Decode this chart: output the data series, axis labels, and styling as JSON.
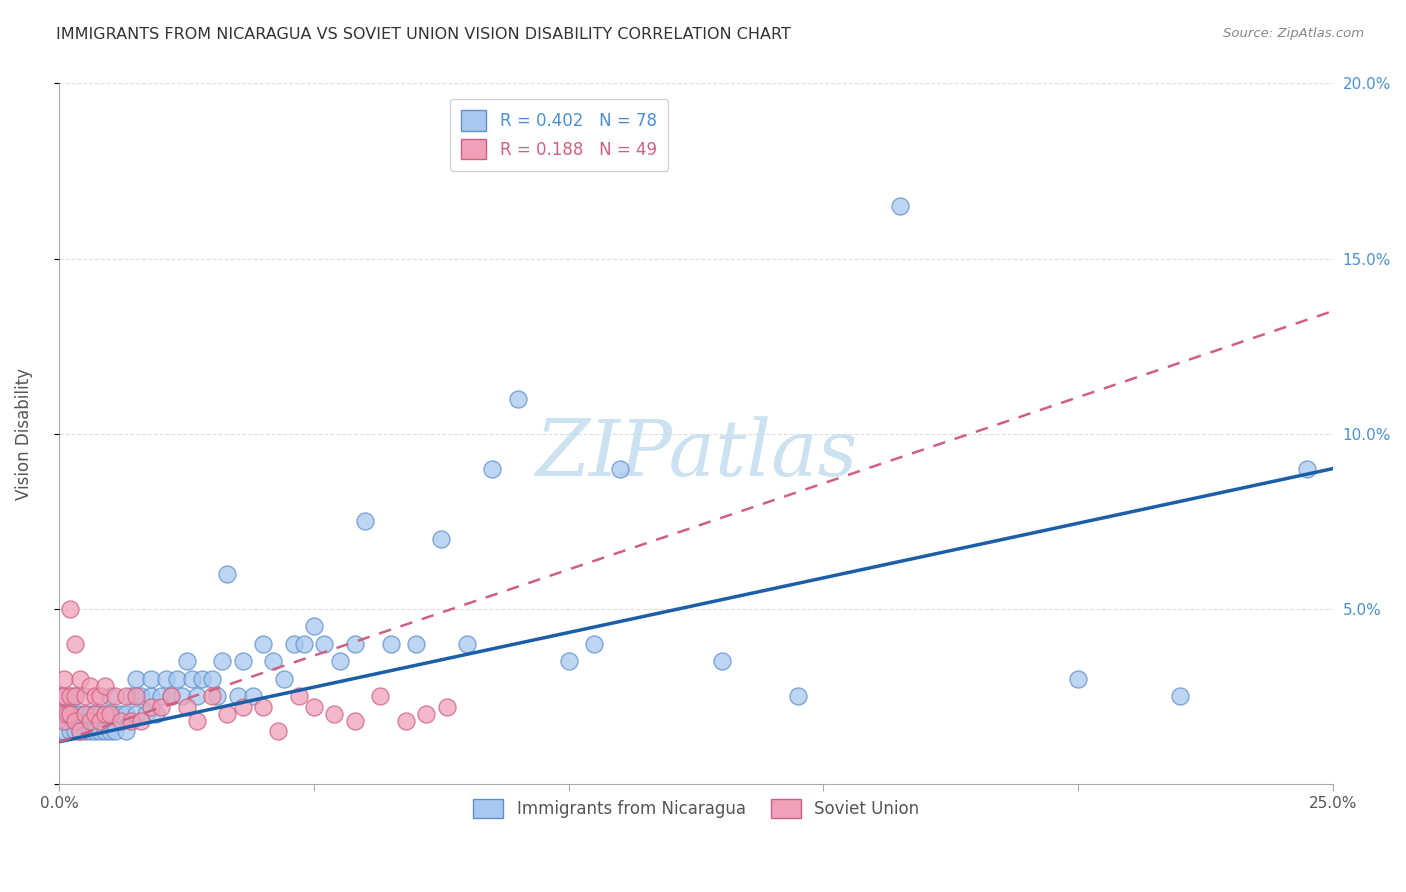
{
  "title": "IMMIGRANTS FROM NICARAGUA VS SOVIET UNION VISION DISABILITY CORRELATION CHART",
  "source": "Source: ZipAtlas.com",
  "ylabel": "Vision Disability",
  "xlim": [
    0,
    0.25
  ],
  "ylim": [
    0,
    0.2
  ],
  "xticks": [
    0.0,
    0.05,
    0.1,
    0.15,
    0.2,
    0.25
  ],
  "yticks": [
    0.0,
    0.05,
    0.1,
    0.15,
    0.2
  ],
  "xtick_labels": [
    "0.0%",
    "",
    "",
    "",
    "",
    "25.0%"
  ],
  "ytick_labels_right": [
    "",
    "5.0%",
    "10.0%",
    "15.0%",
    "20.0%"
  ],
  "nicaragua_color": "#a8c8f0",
  "soviet_color": "#f0a0b8",
  "nicaragua_edge": "#6090c8",
  "soviet_edge": "#d06080",
  "trend_nicaragua_color": "#1a5fa8",
  "trend_soviet_color": "#d06080",
  "legend_R_nicaragua": "0.402",
  "legend_N_nicaragua": "78",
  "legend_R_soviet": "0.188",
  "legend_N_soviet": "49",
  "legend_color_nicaragua": "#4a90d9",
  "legend_color_soviet": "#d06080",
  "watermark_text": "ZIPatlas",
  "watermark_color": "#c8dff0",
  "nicaragua_x": [
    0.0005,
    0.001,
    0.001,
    0.0015,
    0.002,
    0.002,
    0.002,
    0.003,
    0.003,
    0.003,
    0.004,
    0.004,
    0.005,
    0.005,
    0.006,
    0.006,
    0.007,
    0.007,
    0.008,
    0.008,
    0.009,
    0.009,
    0.01,
    0.01,
    0.011,
    0.011,
    0.012,
    0.013,
    0.013,
    0.014,
    0.015,
    0.015,
    0.016,
    0.017,
    0.018,
    0.018,
    0.019,
    0.02,
    0.021,
    0.022,
    0.023,
    0.024,
    0.025,
    0.026,
    0.027,
    0.028,
    0.03,
    0.031,
    0.032,
    0.033,
    0.035,
    0.036,
    0.038,
    0.04,
    0.042,
    0.044,
    0.046,
    0.048,
    0.05,
    0.052,
    0.055,
    0.058,
    0.06,
    0.065,
    0.07,
    0.075,
    0.08,
    0.085,
    0.09,
    0.1,
    0.105,
    0.11,
    0.13,
    0.145,
    0.165,
    0.2,
    0.22,
    0.245
  ],
  "nicaragua_y": [
    0.02,
    0.015,
    0.02,
    0.018,
    0.015,
    0.02,
    0.025,
    0.015,
    0.02,
    0.025,
    0.015,
    0.02,
    0.015,
    0.02,
    0.015,
    0.02,
    0.015,
    0.02,
    0.015,
    0.02,
    0.015,
    0.02,
    0.015,
    0.025,
    0.015,
    0.02,
    0.02,
    0.015,
    0.02,
    0.025,
    0.02,
    0.03,
    0.025,
    0.02,
    0.025,
    0.03,
    0.02,
    0.025,
    0.03,
    0.025,
    0.03,
    0.025,
    0.035,
    0.03,
    0.025,
    0.03,
    0.03,
    0.025,
    0.035,
    0.06,
    0.025,
    0.035,
    0.025,
    0.04,
    0.035,
    0.03,
    0.04,
    0.04,
    0.045,
    0.04,
    0.035,
    0.04,
    0.075,
    0.04,
    0.04,
    0.07,
    0.04,
    0.09,
    0.11,
    0.035,
    0.04,
    0.09,
    0.035,
    0.025,
    0.165,
    0.03,
    0.025,
    0.09
  ],
  "soviet_x": [
    0.0002,
    0.0005,
    0.001,
    0.001,
    0.001,
    0.0015,
    0.002,
    0.002,
    0.002,
    0.003,
    0.003,
    0.003,
    0.004,
    0.004,
    0.005,
    0.005,
    0.006,
    0.006,
    0.007,
    0.007,
    0.008,
    0.008,
    0.009,
    0.009,
    0.01,
    0.011,
    0.012,
    0.013,
    0.014,
    0.015,
    0.016,
    0.018,
    0.02,
    0.022,
    0.025,
    0.027,
    0.03,
    0.033,
    0.036,
    0.04,
    0.043,
    0.047,
    0.05,
    0.054,
    0.058,
    0.063,
    0.068,
    0.072,
    0.076
  ],
  "soviet_y": [
    0.02,
    0.025,
    0.018,
    0.025,
    0.03,
    0.02,
    0.02,
    0.025,
    0.05,
    0.018,
    0.025,
    0.04,
    0.015,
    0.03,
    0.02,
    0.025,
    0.018,
    0.028,
    0.02,
    0.025,
    0.018,
    0.025,
    0.02,
    0.028,
    0.02,
    0.025,
    0.018,
    0.025,
    0.018,
    0.025,
    0.018,
    0.022,
    0.022,
    0.025,
    0.022,
    0.018,
    0.025,
    0.02,
    0.022,
    0.022,
    0.015,
    0.025,
    0.022,
    0.02,
    0.018,
    0.025,
    0.018,
    0.02,
    0.022
  ],
  "nic_trend_x0": 0.0,
  "nic_trend_y0": 0.012,
  "nic_trend_x1": 0.25,
  "nic_trend_y1": 0.09,
  "sov_trend_x0": 0.0,
  "sov_trend_y0": 0.012,
  "sov_trend_x1": 0.25,
  "sov_trend_y1": 0.135
}
